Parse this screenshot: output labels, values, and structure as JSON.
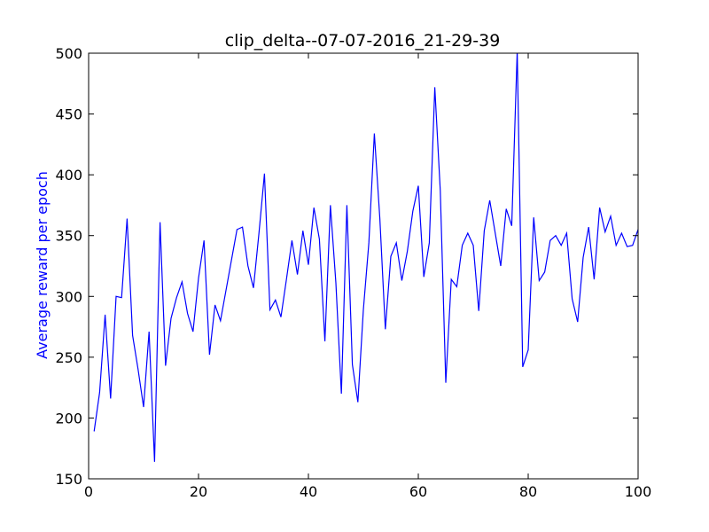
{
  "chart_data": {
    "type": "line",
    "title": "clip_delta--07-07-2016_21-29-39",
    "xlabel": "",
    "ylabel": "Average reward per epoch",
    "xlim": [
      0,
      100
    ],
    "ylim": [
      150,
      500
    ],
    "xticks": [
      0,
      20,
      40,
      60,
      80,
      100
    ],
    "yticks": [
      150,
      200,
      250,
      300,
      350,
      400,
      450,
      500
    ],
    "grid": false,
    "ylabel_color": "#0000ff",
    "series": [
      {
        "color": "#0000ff",
        "x": [
          1,
          2,
          3,
          4,
          5,
          6,
          7,
          8,
          9,
          10,
          11,
          12,
          13,
          14,
          15,
          16,
          17,
          18,
          19,
          20,
          21,
          22,
          23,
          24,
          25,
          26,
          27,
          28,
          29,
          30,
          31,
          32,
          33,
          34,
          35,
          36,
          37,
          38,
          39,
          40,
          41,
          42,
          43,
          44,
          45,
          46,
          47,
          48,
          49,
          50,
          51,
          52,
          53,
          54,
          55,
          56,
          57,
          58,
          59,
          60,
          61,
          62,
          63,
          64,
          65,
          66,
          67,
          68,
          69,
          70,
          71,
          72,
          73,
          74,
          75,
          76,
          77,
          78,
          79,
          80,
          81,
          82,
          83,
          84,
          85,
          86,
          87,
          88,
          89,
          90,
          91,
          92,
          93,
          94,
          95,
          96,
          97,
          98,
          99,
          100
        ],
        "values": [
          189,
          221,
          285,
          216,
          300,
          299,
          364,
          268,
          240,
          209,
          271,
          164,
          361,
          243,
          282,
          299,
          312,
          286,
          271,
          315,
          346,
          252,
          293,
          280,
          305,
          330,
          355,
          357,
          325,
          307,
          352,
          401,
          289,
          297,
          283,
          314,
          346,
          318,
          354,
          326,
          373,
          347,
          263,
          375,
          311,
          220,
          375,
          244,
          213,
          289,
          344,
          434,
          364,
          273,
          333,
          344,
          313,
          337,
          370,
          391,
          316,
          344,
          472,
          387,
          229,
          314,
          308,
          342,
          352,
          342,
          288,
          354,
          379,
          352,
          325,
          372,
          358,
          502,
          242,
          256,
          365,
          313,
          320,
          346,
          350,
          342,
          352,
          298,
          279,
          332,
          357,
          314,
          373,
          353,
          366,
          342,
          352,
          341,
          342,
          355
        ]
      }
    ]
  }
}
